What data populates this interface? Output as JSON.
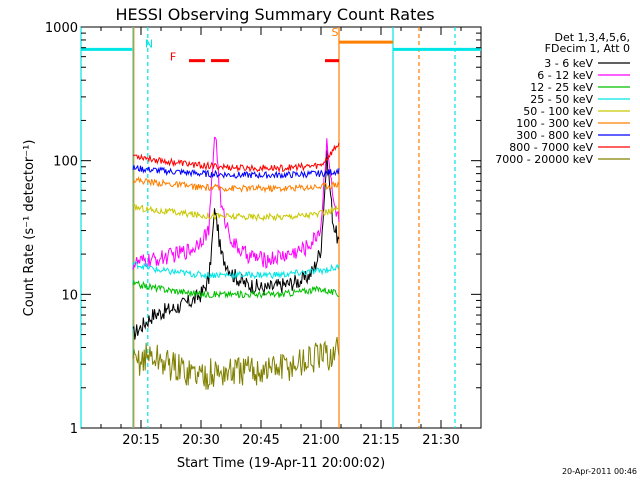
{
  "chart_data": {
    "type": "line",
    "title": "HESSI Observing Summary Count Rates",
    "xlabel": "Start Time (19-Apr-11 20:00:02)",
    "ylabel": "Count Rate (s⁻¹ detector⁻¹)",
    "yscale": "log",
    "ylim": [
      1,
      1000
    ],
    "xlim": [
      0,
      100
    ],
    "x_units": "minutes after 20:00:02",
    "x_ticks": [
      {
        "value": 15,
        "label": "20:15"
      },
      {
        "value": 30,
        "label": "20:30"
      },
      {
        "value": 45,
        "label": "20:45"
      },
      {
        "value": 60,
        "label": "21:00"
      },
      {
        "value": 75,
        "label": "21:15"
      },
      {
        "value": 90,
        "label": "21:30"
      }
    ],
    "y_ticks": [
      {
        "value": 1,
        "label": "1"
      },
      {
        "value": 10,
        "label": "10"
      },
      {
        "value": 100,
        "label": "100"
      },
      {
        "value": 1000,
        "label": "1000"
      }
    ],
    "legend_header": [
      "Det 1,3,4,5,6,",
      "FDecim 1, Att 0"
    ],
    "legend_position": "right",
    "series": [
      {
        "name": "3 - 6 keV",
        "color": "#000000",
        "x": [
          13,
          18,
          24,
          28,
          30,
          32,
          33.5,
          35,
          38,
          41,
          46,
          52,
          56,
          58,
          60,
          61.5,
          63,
          64.5
        ],
        "y": [
          5,
          7,
          8,
          9,
          10,
          13,
          45,
          20,
          14,
          12,
          11,
          12,
          13,
          15,
          22,
          110,
          35,
          24
        ]
      },
      {
        "name": "6 - 12 keV",
        "color": "#ff00ff",
        "x": [
          13,
          18,
          24,
          28,
          30,
          32,
          33.5,
          35,
          38,
          41,
          46,
          52,
          56,
          58,
          60,
          61.5,
          63,
          64.5
        ],
        "y": [
          17,
          18,
          20,
          22,
          26,
          30,
          180,
          45,
          24,
          20,
          18,
          20,
          22,
          25,
          32,
          150,
          50,
          35
        ]
      },
      {
        "name": "12 - 25 keV",
        "color": "#00c000",
        "x": [
          13,
          20,
          30,
          40,
          50,
          60,
          64.5
        ],
        "y": [
          12,
          11,
          10,
          10,
          10,
          11,
          10
        ]
      },
      {
        "name": "25 - 50 keV",
        "color": "#00e5e5",
        "x": [
          13,
          20,
          30,
          40,
          50,
          60,
          64.5
        ],
        "y": [
          17,
          15,
          14,
          14,
          14,
          15,
          16
        ]
      },
      {
        "name": "50 - 100 keV",
        "color": "#c8c800",
        "x": [
          13,
          20,
          30,
          40,
          50,
          60,
          64.5
        ],
        "y": [
          45,
          42,
          39,
          38,
          38,
          40,
          44
        ]
      },
      {
        "name": "100 - 300 keV",
        "color": "#ff7f00",
        "x": [
          13,
          20,
          30,
          40,
          50,
          60,
          64.5
        ],
        "y": [
          72,
          68,
          63,
          62,
          62,
          64,
          67
        ]
      },
      {
        "name": "300 - 800 keV",
        "color": "#0000ff",
        "x": [
          13,
          20,
          30,
          40,
          50,
          60,
          64.5
        ],
        "y": [
          88,
          84,
          80,
          78,
          78,
          80,
          84
        ]
      },
      {
        "name": "800 - 7000 keV",
        "color": "#ff0000",
        "x": [
          13,
          20,
          30,
          40,
          50,
          60,
          64.5
        ],
        "y": [
          110,
          100,
          92,
          88,
          88,
          92,
          135
        ]
      },
      {
        "name": "7000 - 20000 keV",
        "color": "#808000",
        "x": [
          13,
          17,
          24,
          30,
          36,
          44,
          52,
          58,
          63,
          64.5
        ],
        "y": [
          3,
          3.5,
          2.8,
          2.5,
          2.6,
          2.7,
          2.9,
          3.3,
          3.5,
          4
        ]
      }
    ],
    "annotations": [
      {
        "label": "N",
        "color": "#00e5e5",
        "x": 17,
        "y": 700
      },
      {
        "label": "F",
        "color": "#ff0000",
        "x": 23,
        "y": 560
      },
      {
        "label": "S",
        "color": "#ff7f00",
        "x": 63.5,
        "y": 860
      }
    ],
    "flag_bars": [
      {
        "name": "N",
        "color": "#00e5e5",
        "y": 680,
        "ranges": [
          [
            0,
            12.8
          ],
          [
            78,
            100
          ]
        ]
      },
      {
        "name": "F",
        "color": "#ff0000",
        "y": 560,
        "ranges": [
          [
            27,
            31
          ],
          [
            32.5,
            37
          ],
          [
            61,
            64.5
          ]
        ],
        "dashed": true
      },
      {
        "name": "S",
        "color": "#ff7f00",
        "y": 770,
        "ranges": [
          [
            64.5,
            78
          ]
        ]
      }
    ],
    "vertical_lines": [
      {
        "x": 0,
        "color": "#00e5e5",
        "style": "solid"
      },
      {
        "x": 13,
        "color": "#00e5e5",
        "style": "solid"
      },
      {
        "x": 16.7,
        "color": "#00e5e5",
        "style": "dashed"
      },
      {
        "x": 13.2,
        "color": "#ff7f00",
        "style": "solid"
      },
      {
        "x": 64.5,
        "color": "#ff7f00",
        "style": "solid"
      },
      {
        "x": 78,
        "color": "#00e5e5",
        "style": "solid"
      },
      {
        "x": 84.5,
        "color": "#ff7f00",
        "style": "dashed"
      },
      {
        "x": 93.5,
        "color": "#00e5e5",
        "style": "dashed"
      }
    ]
  },
  "footer_timestamp": "20-Apr-2011 00:46"
}
